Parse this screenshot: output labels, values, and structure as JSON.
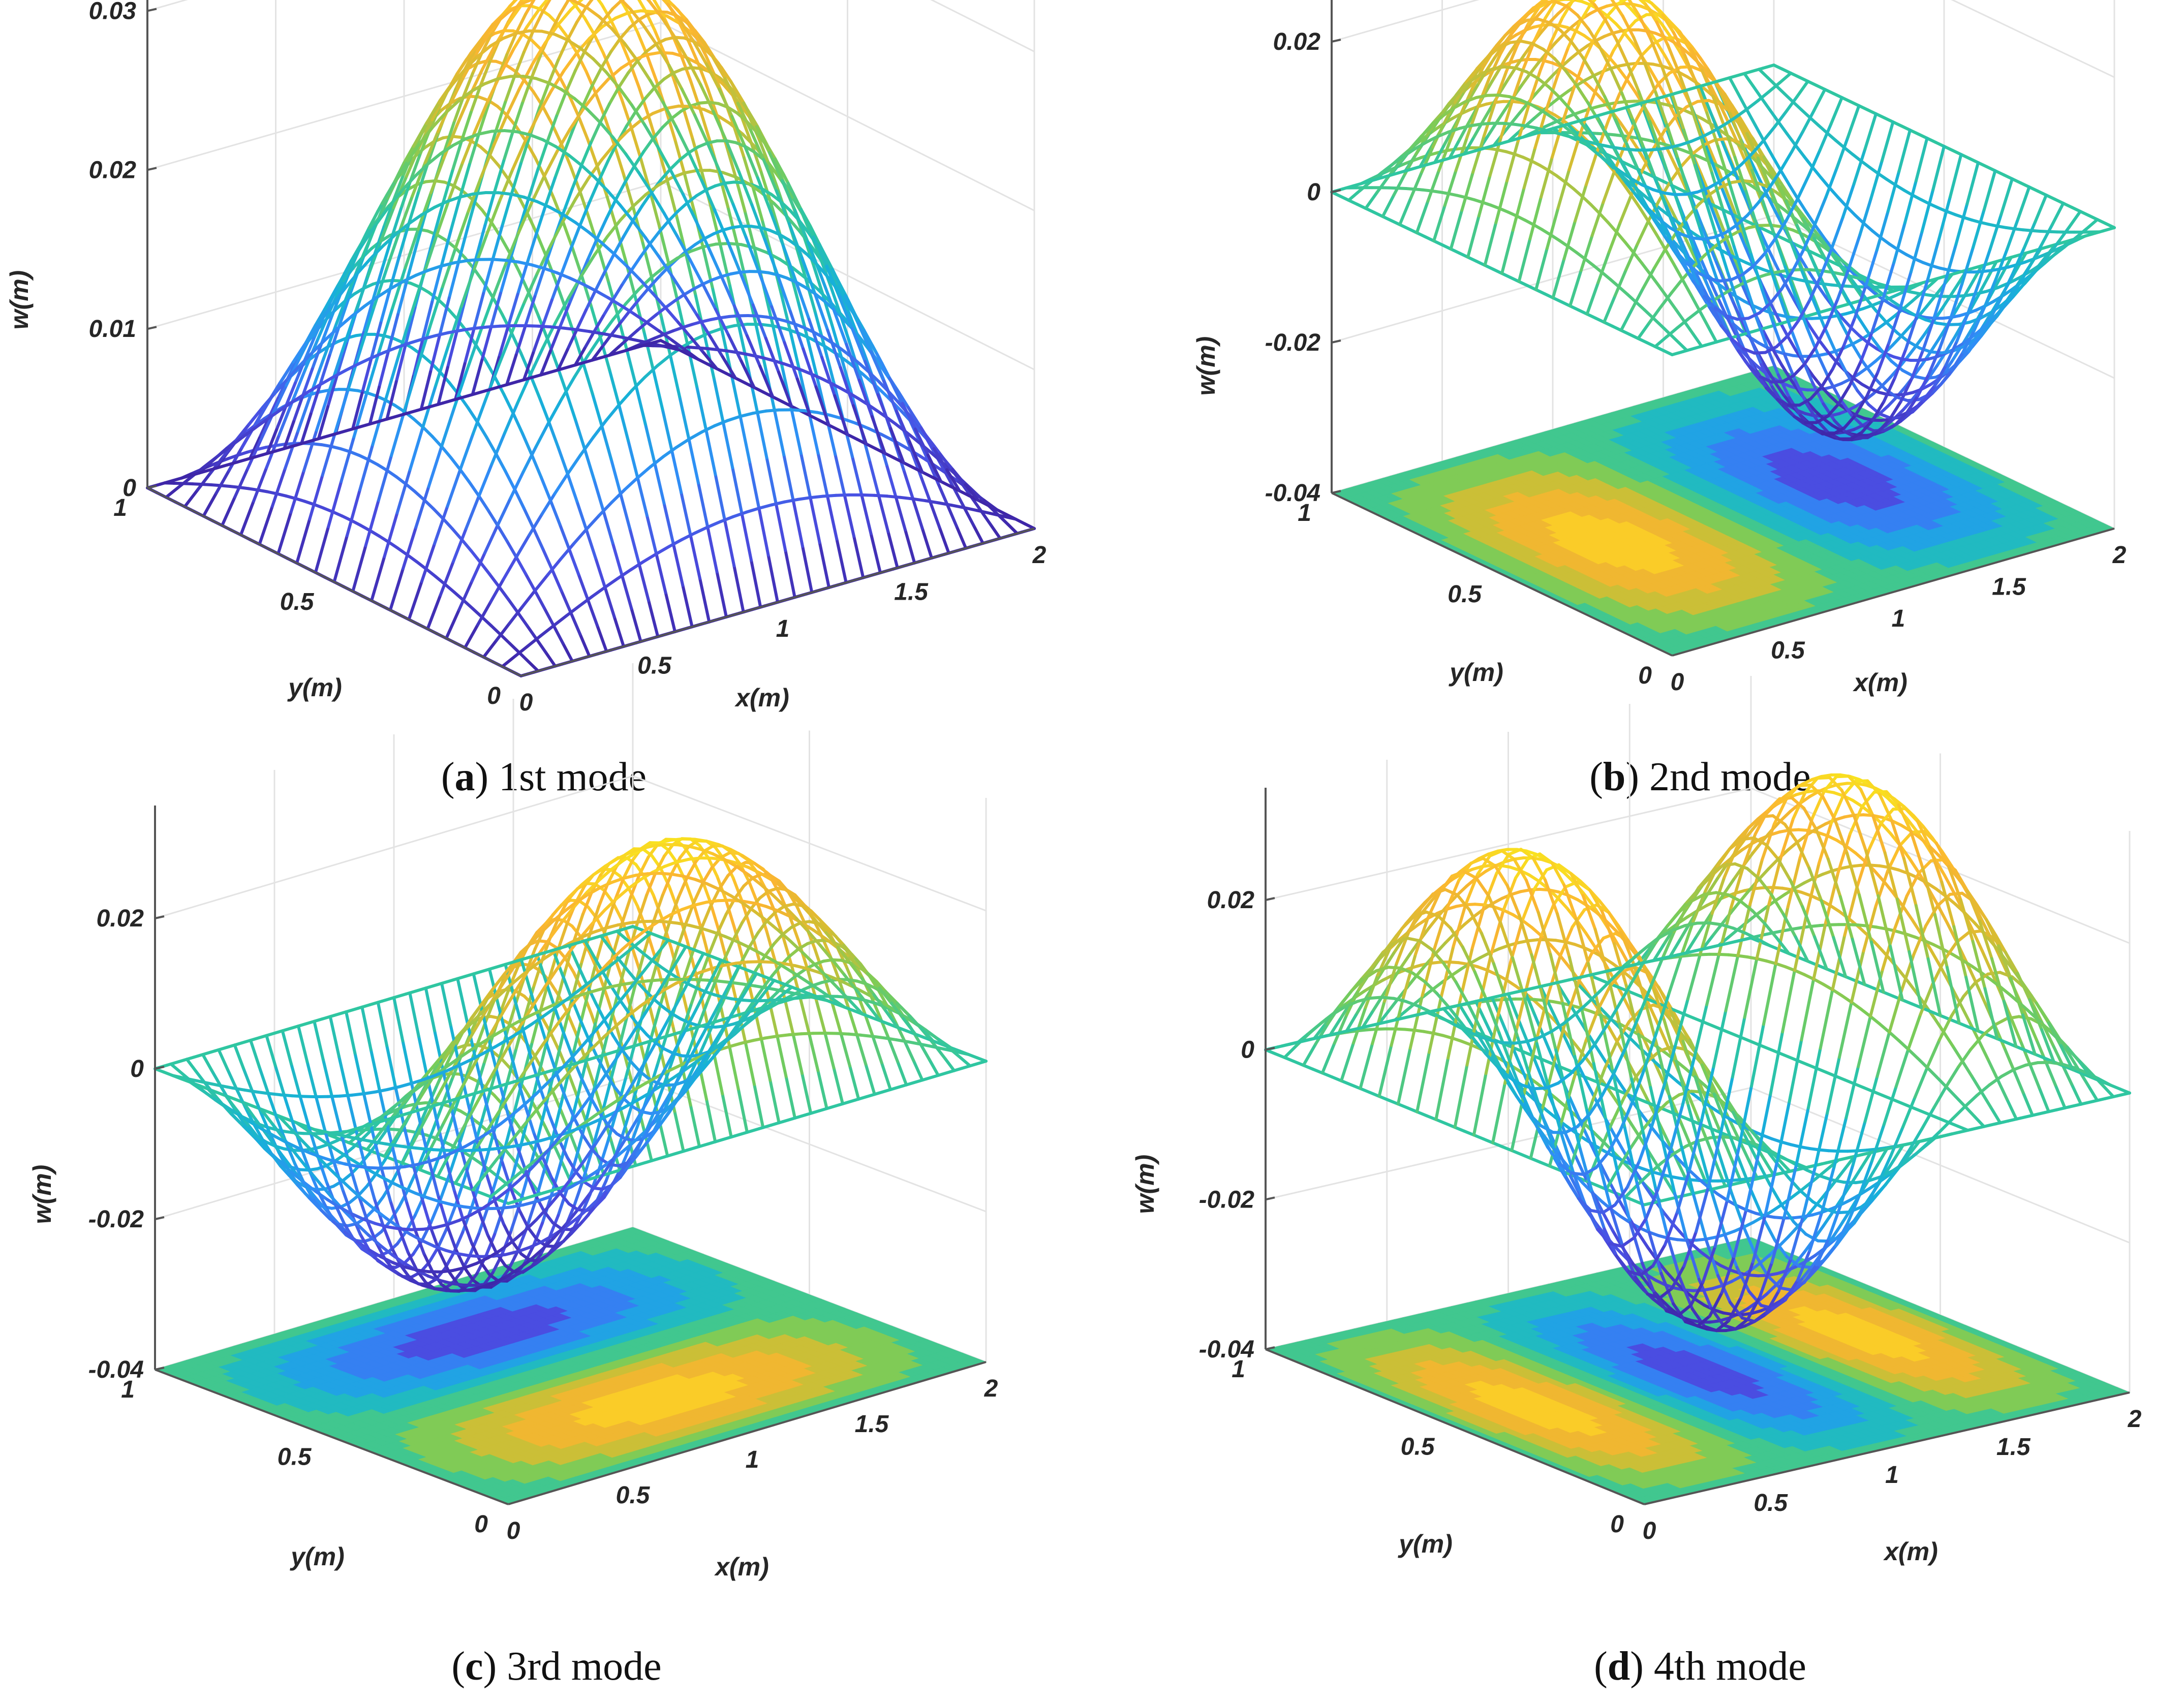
{
  "figure": {
    "colors": [
      "#3e26a8",
      "#4a4fe3",
      "#2f8ef6",
      "#17b1d8",
      "#2fc6a1",
      "#7acc58",
      "#d6bd32",
      "#fbb531",
      "#f9e21f"
    ]
  },
  "chart_data": [
    {
      "id": "a",
      "type": "surface",
      "caption_letter": "a",
      "caption_text": "1st mode",
      "mode": [
        1,
        1
      ],
      "title": "1st mode",
      "xlabel": "x(m)",
      "ylabel": "y(m)",
      "zlabel": "w(m)",
      "xlim": [
        0,
        2
      ],
      "ylim": [
        0,
        1
      ],
      "zlim": [
        0,
        0.035
      ],
      "amplitude": 0.034,
      "contour_floor": false,
      "xticks": [
        "0",
        "0.5",
        "1",
        "1.5",
        "2"
      ],
      "yticks": [
        "0",
        "0.5",
        "1"
      ],
      "zticks": [
        "0",
        "0.01",
        "0.02",
        "0.03"
      ]
    },
    {
      "id": "b",
      "type": "surface",
      "caption_letter": "b",
      "caption_text": "2nd mode",
      "mode": [
        2,
        1
      ],
      "title": "2nd mode",
      "xlabel": "x(m)",
      "ylabel": "y(m)",
      "zlabel": "w(m)",
      "xlim": [
        0,
        2
      ],
      "ylim": [
        0,
        1
      ],
      "zlim": [
        -0.04,
        0.035
      ],
      "amplitude": 0.034,
      "contour_floor": true,
      "xticks": [
        "0",
        "0.5",
        "1",
        "1.5",
        "2"
      ],
      "yticks": [
        "0",
        "0.5",
        "1"
      ],
      "zticks": [
        "-0.04",
        "-0.02",
        "0",
        "0.02"
      ]
    },
    {
      "id": "c",
      "type": "surface",
      "caption_letter": "c",
      "caption_text": "3rd mode",
      "mode": [
        1,
        2
      ],
      "title": "3rd mode",
      "xlabel": "x(m)",
      "ylabel": "y(m)",
      "zlabel": "w(m)",
      "xlim": [
        0,
        2
      ],
      "ylim": [
        0,
        1
      ],
      "zlim": [
        -0.04,
        0.035
      ],
      "amplitude": 0.034,
      "contour_floor": true,
      "xticks": [
        "0",
        "0.5",
        "1",
        "1.5",
        "2"
      ],
      "yticks": [
        "0",
        "0.5",
        "1"
      ],
      "zticks": [
        "-0.04",
        "-0.02",
        "0",
        "0.02"
      ]
    },
    {
      "id": "d",
      "type": "surface",
      "caption_letter": "d",
      "caption_text": "4th mode",
      "mode": [
        3,
        1
      ],
      "title": "4th mode",
      "xlabel": "x(m)",
      "ylabel": "y(m)",
      "zlabel": "w(m)",
      "xlim": [
        0,
        2
      ],
      "ylim": [
        0,
        1
      ],
      "zlim": [
        -0.04,
        0.035
      ],
      "amplitude": 0.034,
      "contour_floor": true,
      "xticks": [
        "0",
        "0.5",
        "1",
        "1.5",
        "2"
      ],
      "yticks": [
        "0",
        "0.5",
        "1"
      ],
      "zticks": [
        "-0.04",
        "-0.02",
        "0",
        "0.02"
      ]
    }
  ]
}
